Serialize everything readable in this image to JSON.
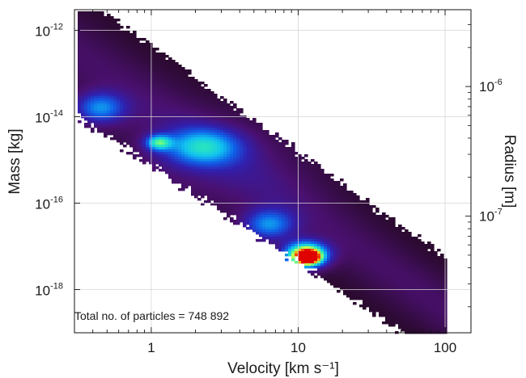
{
  "chart_data": {
    "type": "heatmap",
    "title": "",
    "xlabel": "Velocity [km s⁻¹]",
    "ylabel_left": "Mass [kg]",
    "ylabel_right": "Radius [m]",
    "x_scale": "log",
    "y_scale": "log",
    "xlim": [
      0.3,
      150
    ],
    "ylim": [
      1e-19,
      3e-12
    ],
    "x_ticks": [
      {
        "value": 1,
        "label": "1"
      },
      {
        "value": 10,
        "label": "10"
      },
      {
        "value": 100,
        "label": "100"
      }
    ],
    "y_ticks_left": [
      {
        "value": 1e-12,
        "base": "10",
        "exp": "-12"
      },
      {
        "value": 1e-14,
        "base": "10",
        "exp": "-14"
      },
      {
        "value": 1e-16,
        "base": "10",
        "exp": "-16"
      },
      {
        "value": 1e-18,
        "base": "10",
        "exp": "-18"
      }
    ],
    "y_ticks_right": [
      {
        "mass_value": 5e-14,
        "base": "10",
        "exp": "-6",
        "radius": 1e-06
      },
      {
        "mass_value": 5e-17,
        "base": "10",
        "exp": "-7",
        "radius": 1e-07
      }
    ],
    "grid": true,
    "annotation": "Total no. of particles = 748 892",
    "colormap": [
      "#ffffff",
      "#2a0a2e",
      "#4a1070",
      "#3020b0",
      "#1060e8",
      "#10c0f0",
      "#30f0b0",
      "#d8ff40",
      "#ff8800",
      "#e00000"
    ],
    "density_components": [
      {
        "logv_center": 0.35,
        "logm_center": -15.2,
        "logv_sigma": 0.55,
        "logm_sigma": 0.9,
        "weight": 0.08
      },
      {
        "logv_center": -0.35,
        "logm_center": -13.8,
        "logv_sigma": 0.12,
        "logm_sigma": 0.25,
        "weight": 0.35
      },
      {
        "logv_center": 0.05,
        "logm_center": -14.6,
        "logv_sigma": 0.06,
        "logm_sigma": 0.12,
        "weight": 0.45
      },
      {
        "logv_center": 0.35,
        "logm_center": -14.7,
        "logv_sigma": 0.18,
        "logm_sigma": 0.3,
        "weight": 0.4
      },
      {
        "logv_center": 0.8,
        "logm_center": -16.5,
        "logv_sigma": 0.12,
        "logm_sigma": 0.25,
        "weight": 0.35
      },
      {
        "logv_center": 1.05,
        "logm_center": -17.2,
        "logv_sigma": 0.1,
        "logm_sigma": 0.2,
        "weight": 0.85
      },
      {
        "logv_center": 1.07,
        "logm_center": -17.25,
        "logv_sigma": 0.05,
        "logm_sigma": 0.1,
        "weight": 1.0
      }
    ]
  }
}
